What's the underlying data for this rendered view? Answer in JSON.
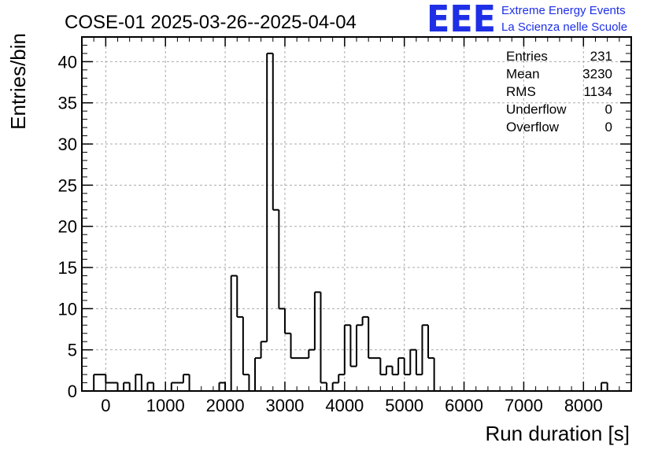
{
  "header": {
    "title": "COSE-01 2025-03-26--2025-04-04",
    "logo": {
      "mark": "EEE",
      "line1": "Extreme Energy Events",
      "line2": "La Scienza nelle Scuole",
      "color": "#1e2fe6"
    }
  },
  "stats": {
    "rows": [
      {
        "label": "Entries",
        "value": "231"
      },
      {
        "label": "Mean",
        "value": "3230"
      },
      {
        "label": "RMS",
        "value": "1134"
      },
      {
        "label": "Underflow",
        "value": "0"
      },
      {
        "label": "Overflow",
        "value": "0"
      }
    ]
  },
  "chart_data": {
    "type": "histogram",
    "xlabel": "Run duration [s]",
    "ylabel": "Entries/bin",
    "xlim": [
      -400,
      8800
    ],
    "ylim": [
      0,
      43
    ],
    "bin_width": 100,
    "grid": true,
    "line_color": "#000000",
    "x_ticks": [
      0,
      1000,
      2000,
      3000,
      4000,
      5000,
      6000,
      7000,
      8000
    ],
    "y_ticks": [
      0,
      5,
      10,
      15,
      20,
      25,
      30,
      35,
      40
    ],
    "bins": [
      {
        "x0": -200,
        "y": 2
      },
      {
        "x0": -100,
        "y": 2
      },
      {
        "x0": 0,
        "y": 1
      },
      {
        "x0": 100,
        "y": 1
      },
      {
        "x0": 200,
        "y": 0
      },
      {
        "x0": 300,
        "y": 1
      },
      {
        "x0": 400,
        "y": 0
      },
      {
        "x0": 500,
        "y": 2
      },
      {
        "x0": 600,
        "y": 0
      },
      {
        "x0": 700,
        "y": 1
      },
      {
        "x0": 800,
        "y": 0
      },
      {
        "x0": 900,
        "y": 0
      },
      {
        "x0": 1000,
        "y": 0
      },
      {
        "x0": 1100,
        "y": 1
      },
      {
        "x0": 1200,
        "y": 1
      },
      {
        "x0": 1300,
        "y": 2
      },
      {
        "x0": 1400,
        "y": 0
      },
      {
        "x0": 1500,
        "y": 0
      },
      {
        "x0": 1600,
        "y": 0
      },
      {
        "x0": 1700,
        "y": 0
      },
      {
        "x0": 1800,
        "y": 0
      },
      {
        "x0": 1900,
        "y": 1
      },
      {
        "x0": 2000,
        "y": 0
      },
      {
        "x0": 2100,
        "y": 14
      },
      {
        "x0": 2200,
        "y": 9
      },
      {
        "x0": 2300,
        "y": 2
      },
      {
        "x0": 2400,
        "y": 0
      },
      {
        "x0": 2500,
        "y": 4
      },
      {
        "x0": 2600,
        "y": 6
      },
      {
        "x0": 2700,
        "y": 41
      },
      {
        "x0": 2800,
        "y": 22
      },
      {
        "x0": 2900,
        "y": 10
      },
      {
        "x0": 3000,
        "y": 7
      },
      {
        "x0": 3100,
        "y": 4
      },
      {
        "x0": 3200,
        "y": 4
      },
      {
        "x0": 3300,
        "y": 4
      },
      {
        "x0": 3400,
        "y": 5
      },
      {
        "x0": 3500,
        "y": 12
      },
      {
        "x0": 3600,
        "y": 1
      },
      {
        "x0": 3700,
        "y": 0
      },
      {
        "x0": 3800,
        "y": 1
      },
      {
        "x0": 3900,
        "y": 2
      },
      {
        "x0": 4000,
        "y": 8
      },
      {
        "x0": 4100,
        "y": 3
      },
      {
        "x0": 4200,
        "y": 8
      },
      {
        "x0": 4300,
        "y": 9
      },
      {
        "x0": 4400,
        "y": 4
      },
      {
        "x0": 4500,
        "y": 4
      },
      {
        "x0": 4600,
        "y": 2
      },
      {
        "x0": 4700,
        "y": 3
      },
      {
        "x0": 4800,
        "y": 2
      },
      {
        "x0": 4900,
        "y": 4
      },
      {
        "x0": 5000,
        "y": 2
      },
      {
        "x0": 5100,
        "y": 5
      },
      {
        "x0": 5200,
        "y": 2
      },
      {
        "x0": 5300,
        "y": 8
      },
      {
        "x0": 5400,
        "y": 4
      },
      {
        "x0": 8300,
        "y": 1
      }
    ]
  }
}
